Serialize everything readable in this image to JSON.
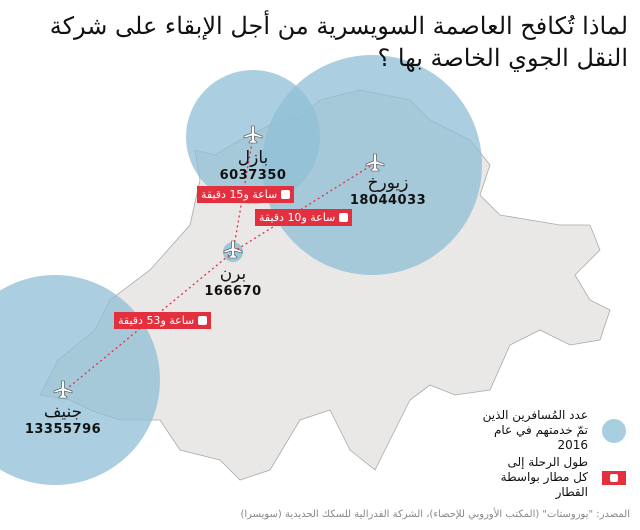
{
  "title": "لماذا تُكافح العاصمة السويسرية من أجل الإبقاء على شركة النقل الجوي الخاصة بها ؟",
  "colors": {
    "circle": "#8fbfd6",
    "country": "#e9e8e6",
    "badge": "#e3303e"
  },
  "airports": [
    {
      "name": "بازل",
      "passengers": "6037350",
      "icon": "airplane-icon"
    },
    {
      "name": "زيورخ",
      "passengers": "18044033",
      "icon": "airplane-icon"
    },
    {
      "name": "برن",
      "passengers": "166670",
      "icon": "airplane-icon"
    },
    {
      "name": "جنيف",
      "passengers": "13355796",
      "icon": "airplane-icon"
    }
  ],
  "train_times": [
    {
      "route": "برن - بازل",
      "label": "ساعة و15 دقيقة"
    },
    {
      "route": "برن - زيورخ",
      "label": "ساعة و10 دقيقة"
    },
    {
      "route": "برن - جنيف",
      "label": "ساعة و53 دقيقة"
    }
  ],
  "legend": {
    "circle_label": "عدد المُسافرين الذين تمّ خدمتهم في عام 2016",
    "train_label": "طول الرحلة إلى كل مطار بواسطة القطار"
  },
  "source": "المصدر: \"يوروستات\" (المكتب الأوروبي للإحصاء)، الشركة الفدرالية للسكك الحديدية (سويسرا)"
}
